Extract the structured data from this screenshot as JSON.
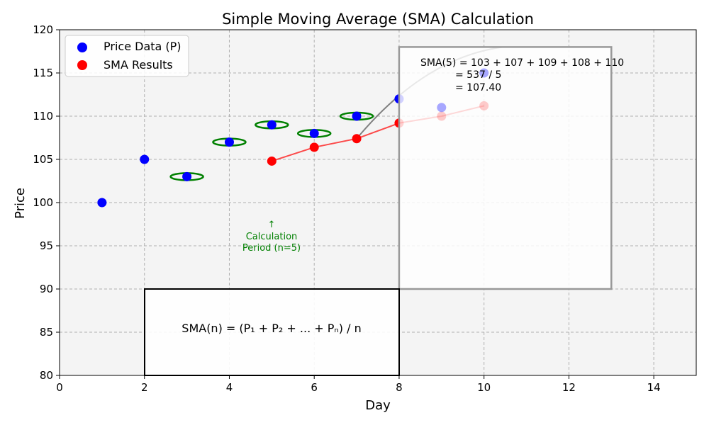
{
  "chart_data": {
    "type": "scatter",
    "title": "Simple Moving Average (SMA) Calculation",
    "xlabel": "Day",
    "ylabel": "Price",
    "xlim": [
      0,
      15
    ],
    "ylim": [
      80,
      120
    ],
    "x_ticks": [
      0,
      2,
      4,
      6,
      8,
      10,
      12,
      14
    ],
    "y_ticks": [
      80,
      85,
      90,
      95,
      100,
      105,
      110,
      115,
      120
    ],
    "grid": true,
    "legend_position": "top-left",
    "series": [
      {
        "name": "Price Data (P)",
        "color": "#0000ff",
        "x": [
          1,
          2,
          3,
          4,
          5,
          6,
          7,
          8,
          9,
          10
        ],
        "values": [
          100,
          105,
          103,
          107,
          109,
          108,
          110,
          112,
          111,
          115
        ]
      },
      {
        "name": "SMA Results",
        "color": "#ff0000",
        "x": [
          5,
          6,
          7,
          8,
          9,
          10
        ],
        "values": [
          104.8,
          106.4,
          107.4,
          109.2,
          110.0,
          111.2
        ]
      }
    ],
    "highlighted_days": [
      3,
      4,
      5,
      6,
      7
    ],
    "faded_from_day": 9,
    "annotations": {
      "period_arrow": "↑",
      "period_line1": "Calculation",
      "period_line2": "Period (n=5)",
      "formula": "SMA(n) = (P₁ + P₂ + ... + Pₙ) / n",
      "calc_line1": "SMA(5) = 103 + 107 + 109 + 108 + 110",
      "calc_line2": "= 537 / 5",
      "calc_line3": "= 107.40"
    },
    "colors": {
      "background": "#f4f4f4",
      "grid": "#b0b0b0",
      "highlight_ring": "#008000",
      "period_text": "#008000",
      "box_border": "#000000",
      "calc_box_border": "#999999",
      "connector": "#808080"
    }
  }
}
